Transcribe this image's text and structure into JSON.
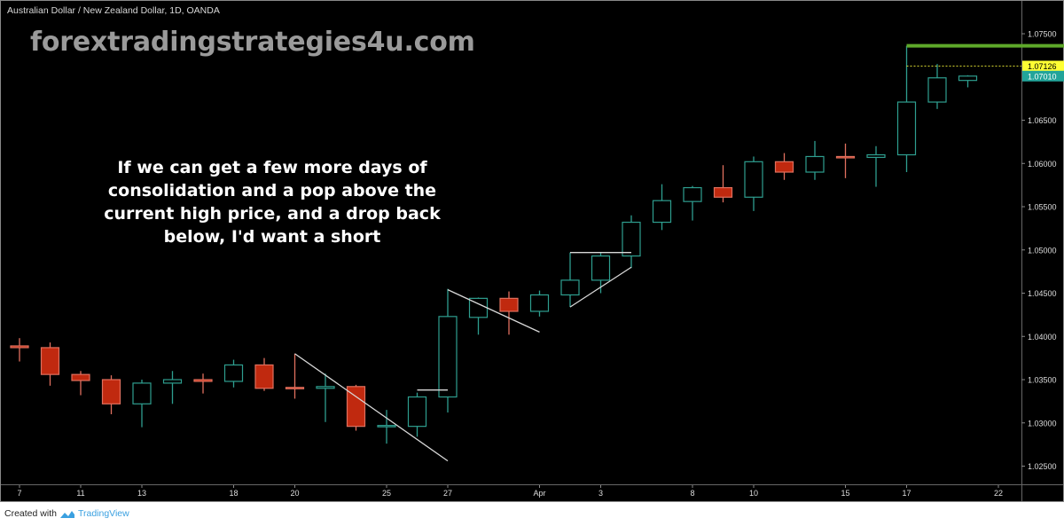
{
  "header": {
    "title": "Australian Dollar / New Zealand Dollar, 1D, OANDA"
  },
  "watermark": "forextradingstrategies4u.com",
  "annotation": "If we can get a few more days of consolidation and a pop above the current high price, and a drop back below, I'd want a short",
  "footer": {
    "created_with": "Created with",
    "brand": "TradingView",
    "logo_icon": "tradingview-cloud-icon"
  },
  "colors": {
    "background": "#000000",
    "up": "#2e9e8f",
    "down_fill": "#c0290f",
    "down_border": "#e0705e",
    "trendline": "#d8d8d8",
    "resistance": "#5ea82a",
    "high_line": "#d6d630",
    "high_label_bg": "#ffff33",
    "last_label_bg": "#22a49a"
  },
  "chart_data": {
    "type": "candlestick",
    "title": "Australian Dollar / New Zealand Dollar, 1D, OANDA",
    "ylim": [
      1.023,
      1.0789
    ],
    "grid": false,
    "y_ticks": [
      "1.07500",
      "1.06500",
      "1.06000",
      "1.05500",
      "1.05000",
      "1.04500",
      "1.04000",
      "1.03500",
      "1.03000",
      "1.02500"
    ],
    "x_ticks": [
      {
        "label": "7",
        "date": "Mar 7"
      },
      {
        "label": "11",
        "date": "Mar 11"
      },
      {
        "label": "13",
        "date": "Mar 13"
      },
      {
        "label": "18",
        "date": "Mar 18"
      },
      {
        "label": "20",
        "date": "Mar 20"
      },
      {
        "label": "25",
        "date": "Mar 25"
      },
      {
        "label": "27",
        "date": "Mar 27"
      },
      {
        "label": "Apr",
        "date": "Apr 1"
      },
      {
        "label": "3",
        "date": "Apr 3"
      },
      {
        "label": "8",
        "date": "Apr 8"
      },
      {
        "label": "10",
        "date": "Apr 10"
      },
      {
        "label": "15",
        "date": "Apr 15"
      },
      {
        "label": "17",
        "date": "Apr 17"
      },
      {
        "label": "22",
        "date": "Apr 22"
      }
    ],
    "candles": [
      {
        "date": "Mar 7",
        "o": 1.0389,
        "h": 1.0398,
        "l": 1.0371,
        "c": 1.0387
      },
      {
        "date": "Mar 8",
        "o": 1.0387,
        "h": 1.0393,
        "l": 1.0343,
        "c": 1.0356
      },
      {
        "date": "Mar 11",
        "o": 1.0356,
        "h": 1.036,
        "l": 1.0332,
        "c": 1.0349
      },
      {
        "date": "Mar 12",
        "o": 1.035,
        "h": 1.0355,
        "l": 1.031,
        "c": 1.0322
      },
      {
        "date": "Mar 13",
        "o": 1.0322,
        "h": 1.035,
        "l": 1.0295,
        "c": 1.0346
      },
      {
        "date": "Mar 14",
        "o": 1.0346,
        "h": 1.036,
        "l": 1.0322,
        "c": 1.035
      },
      {
        "date": "Mar 15",
        "o": 1.035,
        "h": 1.0357,
        "l": 1.0334,
        "c": 1.0348
      },
      {
        "date": "Mar 18",
        "o": 1.0348,
        "h": 1.0373,
        "l": 1.0341,
        "c": 1.0367
      },
      {
        "date": "Mar 19",
        "o": 1.0367,
        "h": 1.0375,
        "l": 1.0337,
        "c": 1.034
      },
      {
        "date": "Mar 20",
        "o": 1.0341,
        "h": 1.038,
        "l": 1.0328,
        "c": 1.034
      },
      {
        "date": "Mar 21",
        "o": 1.034,
        "h": 1.0357,
        "l": 1.0301,
        "c": 1.0342
      },
      {
        "date": "Mar 22",
        "o": 1.0342,
        "h": 1.0344,
        "l": 1.0291,
        "c": 1.0296
      },
      {
        "date": "Mar 25",
        "o": 1.0296,
        "h": 1.0315,
        "l": 1.0276,
        "c": 1.0297
      },
      {
        "date": "Mar 26",
        "o": 1.0296,
        "h": 1.0335,
        "l": 1.0284,
        "c": 1.033
      },
      {
        "date": "Mar 27",
        "o": 1.033,
        "h": 1.0455,
        "l": 1.0312,
        "c": 1.0423
      },
      {
        "date": "Mar 28",
        "o": 1.0422,
        "h": 1.0445,
        "l": 1.0402,
        "c": 1.0444
      },
      {
        "date": "Mar 29",
        "o": 1.0444,
        "h": 1.0452,
        "l": 1.0402,
        "c": 1.0429
      },
      {
        "date": "Apr 1",
        "o": 1.0429,
        "h": 1.0453,
        "l": 1.0423,
        "c": 1.0448
      },
      {
        "date": "Apr 2",
        "o": 1.0448,
        "h": 1.0497,
        "l": 1.0434,
        "c": 1.0465
      },
      {
        "date": "Apr 3",
        "o": 1.0465,
        "h": 1.0497,
        "l": 1.045,
        "c": 1.0493
      },
      {
        "date": "Apr 4",
        "o": 1.0493,
        "h": 1.054,
        "l": 1.0479,
        "c": 1.0532
      },
      {
        "date": "Apr 5",
        "o": 1.0532,
        "h": 1.0576,
        "l": 1.0523,
        "c": 1.0557
      },
      {
        "date": "Apr 8",
        "o": 1.0556,
        "h": 1.0574,
        "l": 1.0534,
        "c": 1.0572
      },
      {
        "date": "Apr 9",
        "o": 1.0572,
        "h": 1.0598,
        "l": 1.0555,
        "c": 1.0561
      },
      {
        "date": "Apr 10",
        "o": 1.0561,
        "h": 1.0608,
        "l": 1.0545,
        "c": 1.0602
      },
      {
        "date": "Apr 11",
        "o": 1.0602,
        "h": 1.0612,
        "l": 1.0581,
        "c": 1.059
      },
      {
        "date": "Apr 12",
        "o": 1.059,
        "h": 1.0626,
        "l": 1.0581,
        "c": 1.0608
      },
      {
        "date": "Apr 15",
        "o": 1.0608,
        "h": 1.0623,
        "l": 1.0583,
        "c": 1.0607
      },
      {
        "date": "Apr 16",
        "o": 1.0607,
        "h": 1.062,
        "l": 1.0573,
        "c": 1.061
      },
      {
        "date": "Apr 17",
        "o": 1.061,
        "h": 1.0736,
        "l": 1.059,
        "c": 1.0671
      },
      {
        "date": "Apr 18",
        "o": 1.0671,
        "h": 1.0715,
        "l": 1.0663,
        "c": 1.0699
      },
      {
        "date": "Apr 19",
        "o": 1.0696,
        "h": 1.0702,
        "l": 1.0688,
        "c": 1.0701
      }
    ],
    "price_labels": [
      {
        "value": "1.07126",
        "kind": "high"
      },
      {
        "value": "1.07010",
        "kind": "last"
      }
    ],
    "drawings": [
      {
        "kind": "trendline",
        "from": {
          "date": "Mar 20",
          "price": 1.038
        },
        "to": {
          "date": "Mar 27",
          "price": 1.0256
        }
      },
      {
        "kind": "trendline",
        "from": {
          "date": "Mar 26",
          "price": 1.0338
        },
        "to": {
          "date": "Mar 27",
          "price": 1.0338
        }
      },
      {
        "kind": "trendline",
        "from": {
          "date": "Mar 27",
          "price": 1.0454
        },
        "to": {
          "date": "Apr 1",
          "price": 1.0405
        }
      },
      {
        "kind": "trendline",
        "from": {
          "date": "Apr 2",
          "price": 1.0434
        },
        "to": {
          "date": "Apr 4",
          "price": 1.048
        }
      },
      {
        "kind": "trendline",
        "from": {
          "date": "Apr 2",
          "price": 1.0497
        },
        "to": {
          "date": "Apr 4",
          "price": 1.0497
        }
      },
      {
        "kind": "resistance",
        "price": 1.0736,
        "from_date": "Apr 17"
      },
      {
        "kind": "high-line",
        "price": 1.07126,
        "from_date": "Apr 17"
      }
    ]
  }
}
